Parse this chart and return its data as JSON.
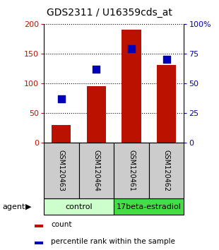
{
  "title": "GDS2311 / U16359cds_at",
  "samples": [
    "GSM120463",
    "GSM120464",
    "GSM120461",
    "GSM120462"
  ],
  "count_values": [
    30,
    95,
    190,
    130
  ],
  "percentile_values": [
    37,
    62,
    79,
    70
  ],
  "ylim_left": [
    0,
    200
  ],
  "ylim_right": [
    0,
    100
  ],
  "yticks_left": [
    0,
    50,
    100,
    150,
    200
  ],
  "yticks_right": [
    0,
    25,
    50,
    75,
    100
  ],
  "ytick_labels_right": [
    "0",
    "25",
    "50",
    "75",
    "100%"
  ],
  "bar_color": "#bb1100",
  "dot_color": "#0000bb",
  "group_colors_control": "#ccffcc",
  "group_colors_estradiol": "#44dd44",
  "sample_bg_color": "#cccccc",
  "bar_width": 0.55,
  "dot_size": 45,
  "title_fontsize": 10,
  "tick_fontsize": 8,
  "sample_fontsize": 7,
  "group_fontsize": 8,
  "legend_fontsize": 7.5
}
